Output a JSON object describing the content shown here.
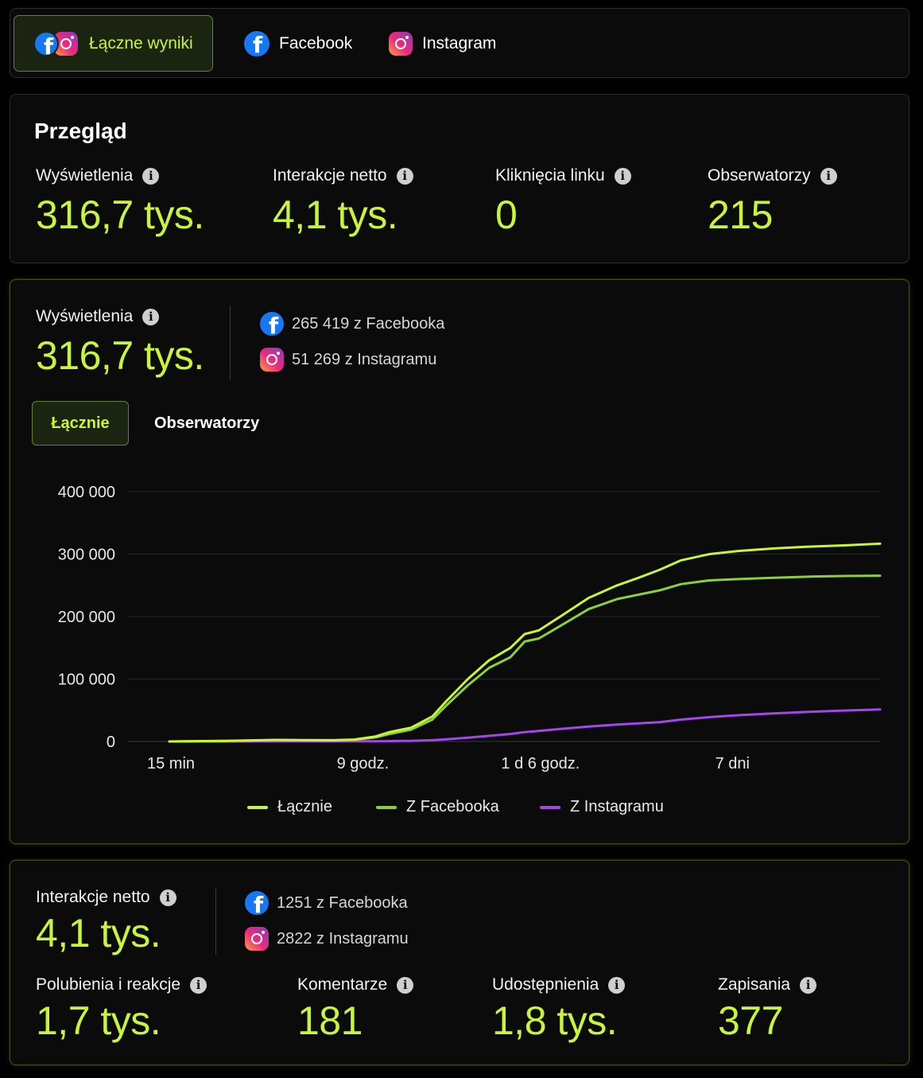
{
  "tabs": [
    {
      "label": "Łączne wyniki",
      "active": true
    },
    {
      "label": "Facebook",
      "active": false
    },
    {
      "label": "Instagram",
      "active": false
    }
  ],
  "overview": {
    "title": "Przegląd",
    "metrics": [
      {
        "label": "Wyświetlenia",
        "value": "316,7 tys."
      },
      {
        "label": "Interakcje netto",
        "value": "4,1 tys."
      },
      {
        "label": "Kliknięcia linku",
        "value": "0"
      },
      {
        "label": "Obserwatorzy",
        "value": "215"
      }
    ]
  },
  "views": {
    "label": "Wyświetlenia",
    "value": "316,7 tys.",
    "sources": {
      "facebook": "265 419 z Facebooka",
      "instagram": "51 269 z Instagramu"
    },
    "subtabs": [
      {
        "label": "Łącznie",
        "active": true
      },
      {
        "label": "Obserwatorzy",
        "active": false
      }
    ]
  },
  "chart_data": {
    "type": "line",
    "y_ticks": [
      "400 000",
      "300 000",
      "200 000",
      "100 000",
      "0"
    ],
    "ylim": [
      0,
      400000
    ],
    "x_ticks": [
      {
        "label": "15 min",
        "x": 0.0
      },
      {
        "label": "9 godz.",
        "x": 0.27
      },
      {
        "label": "1 d 6 godz.",
        "x": 0.52
      },
      {
        "label": "7 dni",
        "x": 0.79
      }
    ],
    "x": [
      0.0,
      0.08,
      0.15,
      0.23,
      0.26,
      0.29,
      0.31,
      0.34,
      0.37,
      0.39,
      0.42,
      0.45,
      0.48,
      0.5,
      0.52,
      0.55,
      0.59,
      0.63,
      0.66,
      0.69,
      0.72,
      0.76,
      0.8,
      0.85,
      0.9,
      0.95,
      1.0
    ],
    "series": [
      {
        "name": "Łącznie",
        "color": "#c8f43b",
        "values": [
          0,
          1000,
          2500,
          2000,
          3000,
          8000,
          15000,
          22000,
          40000,
          65000,
          100000,
          130000,
          150000,
          172000,
          178000,
          200000,
          230000,
          250000,
          262000,
          275000,
          290000,
          300000,
          305000,
          309000,
          312000,
          314000,
          316700
        ]
      },
      {
        "name": "Z Facebooka",
        "color": "#8ccf3c",
        "values": [
          0,
          900,
          2200,
          1800,
          2500,
          6500,
          12000,
          19000,
          35000,
          58000,
          90000,
          118000,
          135000,
          160000,
          165000,
          185000,
          212000,
          228000,
          235000,
          242000,
          252000,
          258000,
          260000,
          262000,
          264000,
          265000,
          265419
        ]
      },
      {
        "name": "Z Instagramu",
        "color": "#a447e8",
        "values": [
          0,
          50,
          100,
          150,
          200,
          400,
          700,
          1000,
          2000,
          3500,
          6000,
          9000,
          12000,
          15000,
          17000,
          20000,
          24000,
          27000,
          29000,
          31000,
          35000,
          39000,
          42000,
          45000,
          47500,
          49500,
          51269
        ]
      }
    ]
  },
  "interactions": {
    "label": "Interakcje netto",
    "value": "4,1 tys.",
    "sources": {
      "facebook": "1251 z Facebooka",
      "instagram": "2822 z Instagramu"
    },
    "metrics": [
      {
        "label": "Polubienia i reakcje",
        "value": "1,7 tys."
      },
      {
        "label": "Komentarze",
        "value": "181"
      },
      {
        "label": "Udostępnienia",
        "value": "1,8 tys."
      },
      {
        "label": "Zapisania",
        "value": "377"
      }
    ]
  },
  "colors": {
    "accent": "#c8f43b",
    "facebook": "#1877f2",
    "instagram_line": "#a447e8"
  }
}
